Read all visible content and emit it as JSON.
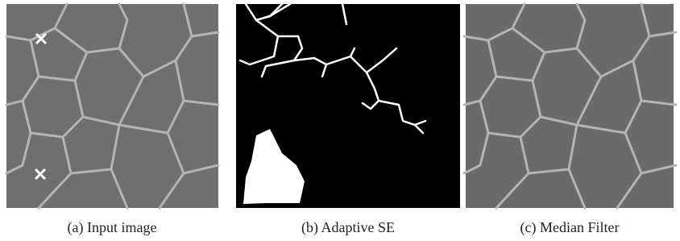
{
  "panels": [
    {
      "caption": "(a) Input image"
    },
    {
      "caption": "(b) Adaptive SE"
    },
    {
      "caption": "(c) Median Filter"
    }
  ]
}
